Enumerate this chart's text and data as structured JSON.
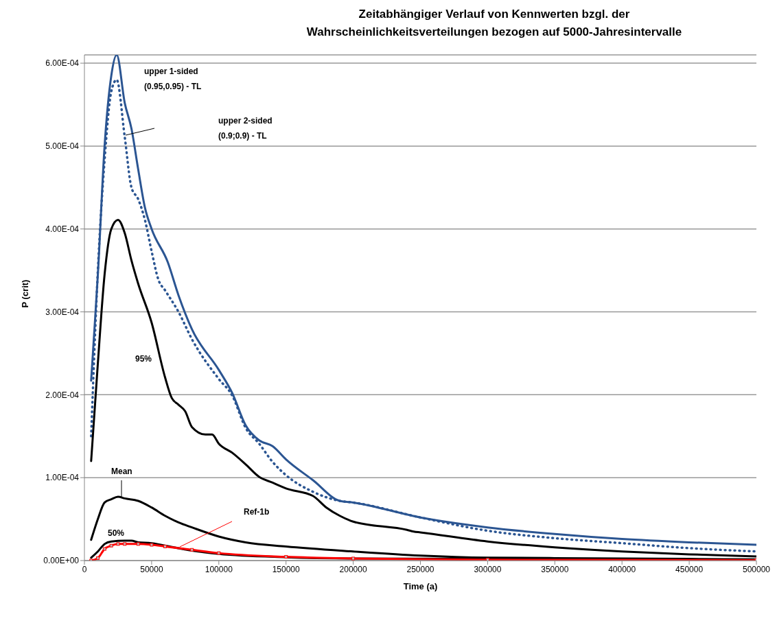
{
  "chart_data": {
    "type": "line",
    "title": "Zeitabhängiger Verlauf von Kennwerten  bzgl. der\nWahrscheinlichkeitsverteilungen bezogen auf 5000-Jahresintervalle",
    "xlabel": "Time (a)",
    "ylabel": "P (crit)",
    "xlim": [
      0,
      500000
    ],
    "xticks": [
      0,
      50000,
      100000,
      150000,
      200000,
      250000,
      300000,
      350000,
      400000,
      450000,
      500000
    ],
    "ylim": [
      0,
      0.00061
    ],
    "yticks": [
      {
        "value": 0,
        "label": "0.00E+00"
      },
      {
        "value": 0.0001,
        "label": "1.00E-04"
      },
      {
        "value": 0.0002,
        "label": "2.00E-04"
      },
      {
        "value": 0.0003,
        "label": "3.00E-04"
      },
      {
        "value": 0.0004,
        "label": "4.00E-04"
      },
      {
        "value": 0.0005,
        "label": "5.00E-04"
      },
      {
        "value": 0.0006,
        "label": "6.00E-04"
      }
    ],
    "grid": "y",
    "legend": false,
    "marker": "none",
    "line_style": "solid",
    "series": [
      {
        "color": "#2b5592",
        "x": [
          5000,
          7500,
          10000,
          15000,
          20000,
          24000,
          30000,
          35000,
          40000,
          45000,
          50000,
          62000,
          70000,
          80000,
          100000,
          110000,
          120000,
          130000,
          140000,
          150000,
          170000,
          190000,
          200000,
          250000,
          300000,
          350000,
          400000,
          450000,
          500000
        ],
        "values": [
          0.000217,
          0.00028,
          0.000345,
          0.0005,
          0.000585,
          0.00061,
          0.000552,
          0.000521,
          0.000472,
          0.000426,
          0.0004,
          0.00036,
          0.00032,
          0.000279,
          0.00023,
          0.000202,
          0.000163,
          0.000145,
          0.000138,
          0.000122,
          9.7e-05,
          7.2e-05,
          7e-05,
          5.2e-05,
          4e-05,
          3.2e-05,
          2.6e-05,
          2.2e-05,
          1.9e-05
        ]
      },
      {
        "color": "#2b5592",
        "line_style": "dotted",
        "x": [
          5000,
          10000,
          15000,
          20000,
          24000,
          30000,
          35000,
          40000,
          45000,
          50000,
          55000,
          60000,
          70000,
          80000,
          100000,
          110000,
          120000,
          130000,
          140000,
          150000,
          170000,
          190000,
          200000,
          250000,
          300000,
          350000,
          400000,
          450000,
          500000
        ],
        "values": [
          0.00015,
          0.00035,
          0.000483,
          0.000566,
          0.00058,
          0.000511,
          0.00045,
          0.000436,
          0.000411,
          0.000373,
          0.000339,
          0.000326,
          0.0003,
          0.000267,
          0.000219,
          0.000199,
          0.00016,
          0.000141,
          0.000119,
          0.000103,
          8.3e-05,
          7.2e-05,
          7e-05,
          5.2e-05,
          3.6e-05,
          2.7e-05,
          2.1e-05,
          1.5e-05,
          1.1e-05
        ]
      },
      {
        "color": "#000000",
        "x": [
          5000,
          10000,
          15000,
          20000,
          25000,
          30000,
          35000,
          40000,
          50000,
          60000,
          65000,
          70000,
          75000,
          80000,
          90000,
          95000,
          100000,
          110000,
          120000,
          130000,
          140000,
          150000,
          170000,
          180000,
          190000,
          200000,
          240000,
          245000,
          250000,
          300000,
          350000,
          400000,
          450000,
          500000
        ],
        "values": [
          0.00012,
          0.000238,
          0.000345,
          0.0004,
          0.000411,
          0.000395,
          0.000362,
          0.000334,
          0.000287,
          0.000221,
          0.000196,
          0.000188,
          0.00018,
          0.000161,
          0.000152,
          0.000152,
          0.000141,
          0.00013,
          0.000116,
          0.000101,
          9.4e-05,
          8.7e-05,
          7.8e-05,
          6.4e-05,
          5.4e-05,
          4.7e-05,
          3.7e-05,
          3.5e-05,
          3.4e-05,
          2.3e-05,
          1.6e-05,
          1.1e-05,
          7.5e-06,
          5e-06
        ]
      },
      {
        "color": "#000000",
        "x": [
          5000,
          10000,
          15000,
          20000,
          25000,
          30000,
          40000,
          50000,
          60000,
          70000,
          80000,
          100000,
          120000,
          150000,
          200000,
          250000,
          300000,
          350000,
          400000,
          450000,
          500000
        ],
        "values": [
          2.5e-05,
          5e-05,
          7e-05,
          7.4e-05,
          7.7e-05,
          7.5e-05,
          7.2e-05,
          6.4e-05,
          5.4e-05,
          4.6e-05,
          4e-05,
          2.9e-05,
          2.2e-05,
          1.7e-05,
          1.1e-05,
          6e-06,
          3.5e-06,
          3e-06,
          2.5e-06,
          2e-06,
          1.5e-06
        ]
      },
      {
        "color": "#000000",
        "x": [
          5000,
          10000,
          15000,
          20000,
          30000,
          35000,
          40000,
          50000,
          60000,
          80000,
          100000,
          150000,
          200000,
          500000
        ],
        "values": [
          3.5e-06,
          1.1e-05,
          2e-05,
          2.3e-05,
          2.4e-05,
          2.4e-05,
          2.2e-05,
          2.1e-05,
          1.8e-05,
          1.2e-05,
          8e-06,
          4e-06,
          2.5e-06,
          1e-06
        ]
      },
      {
        "color": "#ff0000",
        "marker": "square",
        "x": [
          5000,
          10000,
          15000,
          20000,
          25000,
          30000,
          40000,
          50000,
          60000,
          80000,
          100000,
          150000,
          200000,
          300000,
          500000
        ],
        "values": [
          0,
          3e-06,
          1.4e-05,
          1.8e-05,
          2e-05,
          2e-05,
          2e-05,
          1.9e-05,
          1.7e-05,
          1.3e-05,
          9e-06,
          4.5e-06,
          2.5e-06,
          1e-06,
          5e-07
        ]
      }
    ],
    "annotations": [
      "upper 1-sided\n(0.95,0.95) - TL",
      "upper 2-sided\n(0.9;0.9) - TL",
      "95%",
      "Mean",
      "50%",
      "Ref-1b"
    ]
  }
}
